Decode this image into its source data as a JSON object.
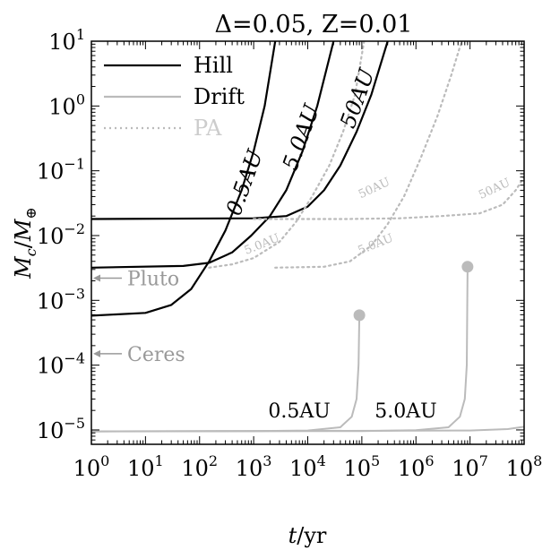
{
  "chart_data": {
    "type": "line",
    "title": "Δ=0.05, Z=0.01",
    "xlabel": "t/yr",
    "ylabel": "M_c/M_⊕",
    "xscale": "log",
    "yscale": "log",
    "xlim": [
      1,
      100000000
    ],
    "ylim": [
      6e-06,
      10
    ],
    "x_ticks": [
      {
        "value": 1,
        "base": "10",
        "exp": "0"
      },
      {
        "value": 10,
        "base": "10",
        "exp": "1"
      },
      {
        "value": 100,
        "base": "10",
        "exp": "2"
      },
      {
        "value": 1000,
        "base": "10",
        "exp": "3"
      },
      {
        "value": 10000,
        "base": "10",
        "exp": "4"
      },
      {
        "value": 100000,
        "base": "10",
        "exp": "5"
      },
      {
        "value": 1000000,
        "base": "10",
        "exp": "6"
      },
      {
        "value": 10000000,
        "base": "10",
        "exp": "7"
      },
      {
        "value": 100000000,
        "base": "10",
        "exp": "8"
      }
    ],
    "y_ticks": [
      {
        "value": 1e-05,
        "base": "10",
        "exp": "−5"
      },
      {
        "value": 0.0001,
        "base": "10",
        "exp": "−4"
      },
      {
        "value": 0.001,
        "base": "10",
        "exp": "−3"
      },
      {
        "value": 0.01,
        "base": "10",
        "exp": "−2"
      },
      {
        "value": 0.1,
        "base": "10",
        "exp": "−1"
      },
      {
        "value": 1,
        "base": "10",
        "exp": "0"
      },
      {
        "value": 10,
        "base": "10",
        "exp": "1"
      }
    ],
    "grid": false,
    "legend_position": "top-left",
    "legend": [
      {
        "name": "Hill",
        "color": "#000000",
        "style": "solid"
      },
      {
        "name": "Drift",
        "color": "#bbbbbb",
        "style": "solid"
      },
      {
        "name": "PA",
        "color": "#bbbbbb",
        "style": "dotted"
      }
    ],
    "series": [
      {
        "group": "Hill",
        "label": "0.5AU",
        "color": "#000000",
        "style": "solid",
        "points": [
          [
            1,
            0.00058
          ],
          [
            10,
            0.00064
          ],
          [
            30,
            0.00085
          ],
          [
            70,
            0.0015
          ],
          [
            150,
            0.004
          ],
          [
            300,
            0.012
          ],
          [
            600,
            0.05
          ],
          [
            1000,
            0.2
          ],
          [
            1600,
            1.0
          ],
          [
            2500,
            10
          ]
        ]
      },
      {
        "group": "Hill",
        "label": "5.0AU",
        "color": "#000000",
        "style": "solid",
        "points": [
          [
            1,
            0.0032
          ],
          [
            50,
            0.0034
          ],
          [
            150,
            0.0038
          ],
          [
            400,
            0.0055
          ],
          [
            900,
            0.01
          ],
          [
            2000,
            0.02
          ],
          [
            4000,
            0.05
          ],
          [
            8000,
            0.2
          ],
          [
            15000,
            1.0
          ],
          [
            30000,
            10
          ]
        ]
      },
      {
        "group": "Hill",
        "label": "50AU",
        "color": "#000000",
        "style": "solid",
        "points": [
          [
            1,
            0.018
          ],
          [
            1000,
            0.0185
          ],
          [
            4000,
            0.02
          ],
          [
            10000,
            0.028
          ],
          [
            20000,
            0.05
          ],
          [
            40000,
            0.12
          ],
          [
            80000,
            0.4
          ],
          [
            150000,
            1.5
          ],
          [
            300000,
            10
          ]
        ]
      },
      {
        "group": "Drift",
        "label": "0.5AU",
        "color": "#bbbbbb",
        "style": "solid",
        "end_marker": true,
        "points": [
          [
            1,
            9.5e-06
          ],
          [
            1000,
            9.6e-06
          ],
          [
            10000,
            9.8e-06
          ],
          [
            40000,
            1.1e-05
          ],
          [
            65000,
            1.6e-05
          ],
          [
            80000,
            3e-05
          ],
          [
            87000,
            0.0001
          ],
          [
            90000,
            0.00059
          ]
        ]
      },
      {
        "group": "Drift",
        "label": "5.0AU",
        "color": "#bbbbbb",
        "style": "solid",
        "end_marker": true,
        "points": [
          [
            1,
            9.5e-06
          ],
          [
            100000,
            9.6e-06
          ],
          [
            1000000,
            9.9e-06
          ],
          [
            4000000,
            1.1e-05
          ],
          [
            6500000,
            1.6e-05
          ],
          [
            8000000,
            3e-05
          ],
          [
            8700000,
            0.0001
          ],
          [
            9000000,
            0.0033
          ]
        ]
      },
      {
        "group": "Drift",
        "label": "50AU",
        "color": "#bbbbbb",
        "style": "solid",
        "points": [
          [
            1,
            9.5e-06
          ],
          [
            10000000,
            9.8e-06
          ],
          [
            50000000,
            1.03e-05
          ],
          [
            100000000,
            1.12e-05
          ]
        ]
      },
      {
        "group": "PA",
        "label": "0.5AU",
        "color": "#bbbbbb",
        "style": "dotted",
        "points": [
          [
            150,
            0.0032
          ],
          [
            400,
            0.0036
          ],
          [
            1000,
            0.0045
          ],
          [
            3000,
            0.008
          ],
          [
            6000,
            0.016
          ],
          [
            12000,
            0.04
          ],
          [
            25000,
            0.12
          ],
          [
            45000,
            0.4
          ],
          [
            75000,
            1.5
          ],
          [
            110000,
            10
          ]
        ]
      },
      {
        "group": "PA",
        "label": "5.0AU",
        "color": "#bbbbbb",
        "style": "dotted",
        "points": [
          [
            2500,
            0.0032
          ],
          [
            20000,
            0.0033
          ],
          [
            60000,
            0.004
          ],
          [
            150000,
            0.007
          ],
          [
            300000,
            0.015
          ],
          [
            600000,
            0.04
          ],
          [
            1200000,
            0.15
          ],
          [
            2500000,
            0.7
          ],
          [
            4500000,
            3
          ],
          [
            7000000,
            10
          ]
        ]
      },
      {
        "group": "PA",
        "label": "50AU",
        "color": "#bbbbbb",
        "style": "dotted",
        "points": [
          [
            1000,
            0.018
          ],
          [
            50000,
            0.018
          ],
          [
            500000,
            0.0185
          ],
          [
            3000000,
            0.02
          ],
          [
            15000000,
            0.022
          ],
          [
            40000000,
            0.03
          ],
          [
            70000000,
            0.05
          ],
          [
            100000000,
            0.08
          ]
        ]
      }
    ],
    "annotations": [
      {
        "text": "0.5AU",
        "color": "#000000",
        "x": 900,
        "y": 0.06,
        "rotate": -70,
        "size": 24
      },
      {
        "text": "5.0AU",
        "color": "#000000",
        "x": 10000,
        "y": 0.3,
        "rotate": -70,
        "size": 24
      },
      {
        "text": "50AU",
        "color": "#000000",
        "x": 110000,
        "y": 1.2,
        "rotate": -70,
        "size": 24
      },
      {
        "text": "50AU",
        "color": "#bbbbbb",
        "x": 180000,
        "y": 0.048,
        "rotate": -25,
        "size": 13
      },
      {
        "text": "5.0AU",
        "color": "#bbbbbb",
        "x": 1500,
        "y": 0.0065,
        "rotate": -22,
        "size": 13
      },
      {
        "text": "5.0AU",
        "color": "#bbbbbb",
        "x": 190000,
        "y": 0.0065,
        "rotate": -22,
        "size": 13
      },
      {
        "text": "50AU",
        "color": "#bbbbbb",
        "x": 30000000,
        "y": 0.047,
        "rotate": -25,
        "size": 13
      },
      {
        "text": "0.5AU",
        "color": "#000000",
        "x": 7000,
        "y": 1.55e-05,
        "rotate": 0,
        "size": 22
      },
      {
        "text": "5.0AU",
        "color": "#000000",
        "x": 650000,
        "y": 1.55e-05,
        "rotate": 0,
        "size": 22
      }
    ],
    "reference_marks": [
      {
        "label": "Pluto",
        "value": 0.0022,
        "color": "#999999"
      },
      {
        "label": "Ceres",
        "value": 0.00015,
        "color": "#999999"
      }
    ]
  }
}
